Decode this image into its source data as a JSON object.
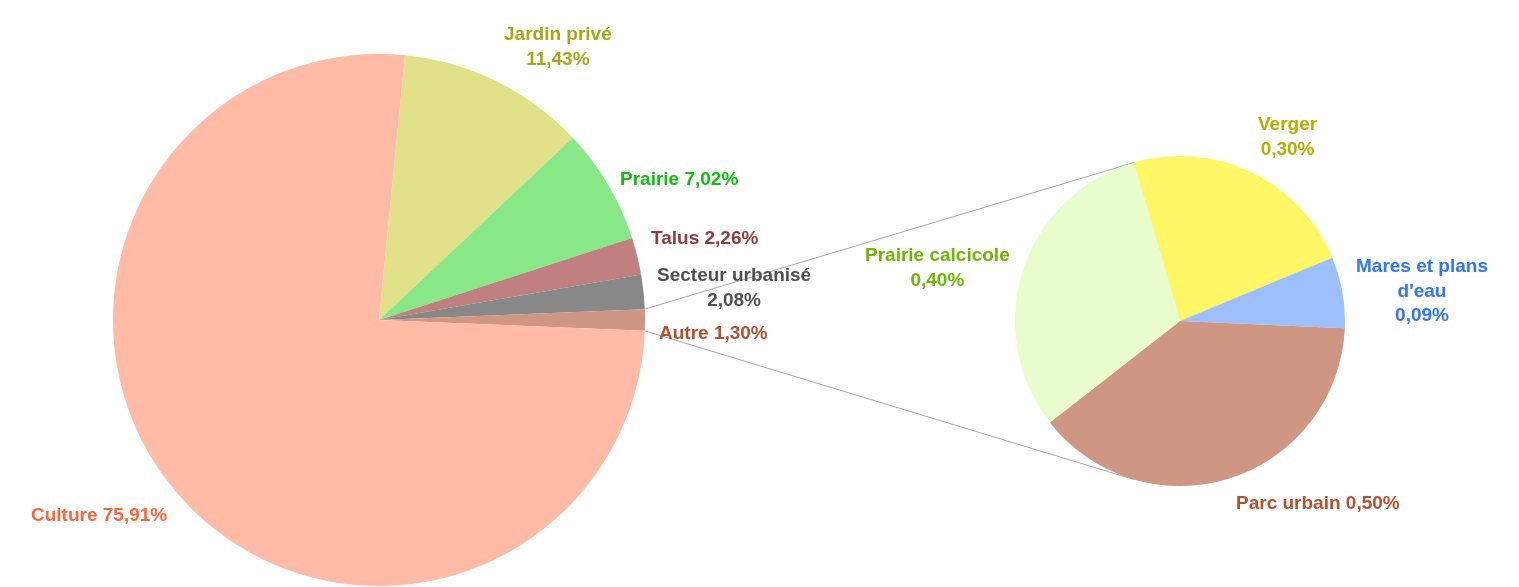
{
  "chart_data": [
    {
      "type": "pie",
      "categories": [
        "Jardin privé",
        "Prairie",
        "Talus",
        "Secteur urbanisé",
        "Autre",
        "Culture"
      ],
      "values": [
        11.43,
        7.02,
        2.26,
        2.08,
        1.3,
        75.91
      ],
      "colors": [
        "#e1e18a",
        "#88e888",
        "#c08080",
        "#888888",
        "#d09684",
        "#ffbba6"
      ],
      "value_labels": [
        "11,43%",
        "7,02%",
        "2,26%",
        "2,08%",
        "1,30%",
        "75,91%"
      ]
    },
    {
      "type": "pie",
      "categories": [
        "Verger",
        "Mares et plans d'eau",
        "Parc urbain",
        "Prairie calcicole"
      ],
      "values": [
        0.3,
        0.09,
        0.5,
        0.4
      ],
      "colors": [
        "#fff766",
        "#9ebfff",
        "#d09684",
        "#e8fccc"
      ],
      "value_labels": [
        "0,30%",
        "0,09%",
        "0,50%",
        "0,40%"
      ]
    }
  ]
}
